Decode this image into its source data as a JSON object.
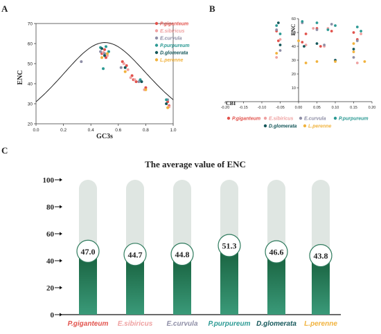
{
  "colors": {
    "P.giganteum": "#e2524c",
    "E.sibiricus": "#efa0a0",
    "E.curvula": "#8e8ea6",
    "P.purpureum": "#2c9a94",
    "D.glomerata": "#15575a",
    "L.perenne": "#f1b23c"
  },
  "panel_labels": {
    "a": "A",
    "b": "B",
    "c": "C"
  },
  "chart_data": [
    {
      "type": "scatter",
      "xlabel": "GC3s",
      "ylabel": "ENC",
      "xlim": [
        0.0,
        1.0
      ],
      "ylim": [
        20,
        70
      ],
      "xticks": [
        "0.0",
        "0.2",
        "0.4",
        "0.6",
        "0.8",
        "1.0"
      ],
      "yticks": [
        "20",
        "30",
        "40",
        "50",
        "60",
        "70"
      ],
      "expected_curve": true,
      "legend": "top-right",
      "series": [
        {
          "name": "P.giganteum",
          "points": [
            [
              0.48,
              55
            ],
            [
              0.5,
              57
            ],
            [
              0.51,
              53
            ],
            [
              0.63,
              51
            ],
            [
              0.66,
              49
            ],
            [
              0.7,
              44
            ],
            [
              0.71,
              42
            ],
            [
              0.73,
              41
            ],
            [
              0.8,
              38
            ],
            [
              0.96,
              31
            ],
            [
              0.97,
              29
            ]
          ]
        },
        {
          "name": "E.sibiricus",
          "points": [
            [
              0.49,
              55.5
            ],
            [
              0.52,
              54
            ],
            [
              0.64,
              50
            ],
            [
              0.67,
              47
            ],
            [
              0.69,
              43
            ],
            [
              0.72,
              42
            ],
            [
              0.79,
              37
            ],
            [
              0.97,
              28.5
            ]
          ]
        },
        {
          "name": "E.curvula",
          "points": [
            [
              0.33,
              51
            ],
            [
              0.47,
              56
            ],
            [
              0.5,
              55
            ],
            [
              0.62,
              48
            ],
            [
              0.75,
              41
            ],
            [
              0.96,
              32
            ]
          ]
        },
        {
          "name": "P.purpureum",
          "points": [
            [
              0.47,
              58
            ],
            [
              0.49,
              47.5
            ],
            [
              0.51,
              58.5
            ],
            [
              0.53,
              56
            ],
            [
              0.76,
              42
            ],
            [
              0.95,
              32
            ]
          ]
        },
        {
          "name": "D.glomerata",
          "points": [
            [
              0.48,
              57.5
            ],
            [
              0.5,
              54
            ],
            [
              0.65,
              48
            ],
            [
              0.77,
              41
            ],
            [
              0.95,
              30
            ]
          ]
        },
        {
          "name": "L.perenne",
          "points": [
            [
              0.48,
              53
            ],
            [
              0.52,
              55
            ],
            [
              0.65,
              46
            ],
            [
              0.8,
              37
            ],
            [
              0.96,
              28
            ]
          ]
        }
      ]
    },
    {
      "type": "scatter",
      "xlabel": "CBI",
      "ylabel": "ENC",
      "xlim": [
        -0.2,
        0.2
      ],
      "ylim": [
        0,
        60
      ],
      "xticks": [
        "-0.20",
        "-0.15",
        "-0.10",
        "-0.05",
        "0.00",
        "0.05",
        "0.10",
        "0.15",
        "0.20"
      ],
      "yticks": [
        "0",
        "10",
        "20",
        "30",
        "40",
        "50",
        "60"
      ],
      "legend": "bottom",
      "series": [
        {
          "name": "P.giganteum",
          "points": [
            [
              -0.06,
              51
            ],
            [
              -0.055,
              44
            ],
            [
              0.01,
              43
            ],
            [
              0.02,
              49
            ],
            [
              0.05,
              53
            ],
            [
              0.06,
              40
            ],
            [
              0.09,
              51
            ],
            [
              0.15,
              50
            ],
            [
              0.16,
              45
            ]
          ]
        },
        {
          "name": "E.sibiricus",
          "points": [
            [
              -0.06,
              32
            ],
            [
              -0.05,
              45
            ],
            [
              0.02,
              41
            ],
            [
              0.04,
              53
            ],
            [
              0.07,
              40
            ],
            [
              0.08,
              53
            ],
            [
              0.16,
              28
            ],
            [
              0.17,
              49
            ]
          ]
        },
        {
          "name": "E.curvula",
          "points": [
            [
              -0.06,
              52
            ],
            [
              -0.05,
              37
            ],
            [
              0.01,
              57
            ],
            [
              0.05,
              52
            ],
            [
              0.07,
              41
            ],
            [
              0.09,
              56
            ],
            [
              0.15,
              32
            ],
            [
              0.16,
              44
            ]
          ]
        },
        {
          "name": "P.purpureum",
          "points": [
            [
              -0.06,
              55
            ],
            [
              -0.05,
              49
            ],
            [
              0.01,
              58
            ],
            [
              0.05,
              57
            ],
            [
              0.08,
              52
            ],
            [
              0.1,
              55
            ],
            [
              0.16,
              54
            ],
            [
              0.17,
              51
            ]
          ]
        },
        {
          "name": "D.glomerata",
          "points": [
            [
              -0.055,
              57
            ],
            [
              -0.05,
              41
            ],
            [
              0.015,
              40
            ],
            [
              0.05,
              42
            ],
            [
              0.1,
              30
            ],
            [
              0.15,
              38
            ]
          ]
        },
        {
          "name": "L.perenne",
          "points": [
            [
              -0.06,
              35
            ],
            [
              0.0,
              44
            ],
            [
              0.02,
              28
            ],
            [
              0.05,
              29
            ],
            [
              0.1,
              29
            ],
            [
              0.15,
              42
            ],
            [
              0.15,
              36
            ],
            [
              0.18,
              29
            ]
          ]
        }
      ]
    },
    {
      "type": "bar",
      "title": "The average value of ENC",
      "categories": [
        "P.giganteum",
        "E.sibiricus",
        "E.curvula",
        "P.purpureum",
        "D.glomerata",
        "L.perenne"
      ],
      "values": [
        47.0,
        44.7,
        44.8,
        51.3,
        46.6,
        43.8
      ],
      "value_labels": [
        "47.0",
        "44.7",
        "44.8",
        "51.3",
        "46.6",
        "43.8"
      ],
      "ylim": [
        0,
        100
      ],
      "yticks": [
        "0",
        "20",
        "40",
        "60",
        "80",
        "100"
      ],
      "grid": false
    }
  ]
}
